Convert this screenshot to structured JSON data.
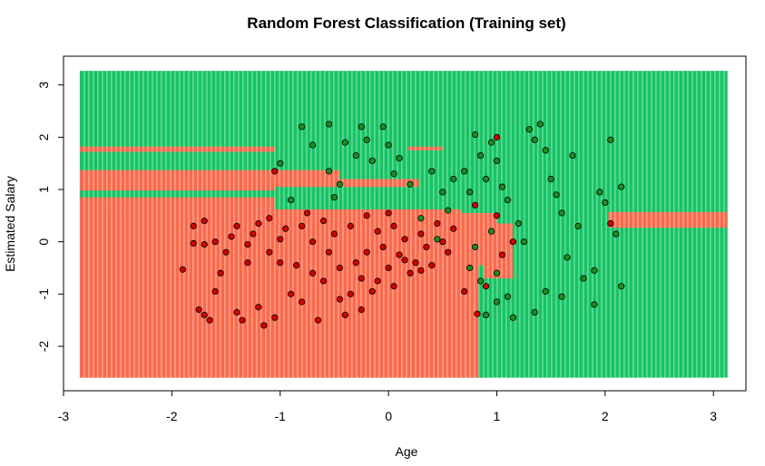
{
  "chart_data": {
    "type": "scatter",
    "title": "Random Forest Classification (Training set)",
    "xlabel": "Age",
    "ylabel": "Estimated Salary",
    "xlim": [
      -3.0,
      3.3
    ],
    "ylim": [
      -2.85,
      3.55
    ],
    "x_ticks": [
      -3,
      -2,
      -1,
      0,
      1,
      2,
      3
    ],
    "y_ticks": [
      -2,
      -1,
      0,
      1,
      2,
      3
    ],
    "x_tick_labels": [
      "-3",
      "-2",
      "-1",
      "0",
      "1",
      "2",
      "3"
    ],
    "y_tick_labels": [
      "-2",
      "-1",
      "0",
      "1",
      "2",
      "3"
    ],
    "grid_range": {
      "x": [
        -2.85,
        3.13
      ],
      "y": [
        -2.6,
        3.27
      ]
    },
    "colors": {
      "class_0_region": "#FA6A4C",
      "class_1_region": "#16C464",
      "class_0_point": "#D40000",
      "class_1_point": "#1E8C22",
      "point_outline": "#000000"
    },
    "regions": [
      {
        "class": 1,
        "x": [
          -2.85,
          3.13
        ],
        "y": [
          -2.6,
          3.27
        ]
      },
      {
        "class": 0,
        "x": [
          -2.85,
          0.67
        ],
        "y": [
          -2.6,
          0.62
        ]
      },
      {
        "class": 0,
        "x": [
          -2.85,
          -1.05
        ],
        "y": [
          0.62,
          1.37
        ]
      },
      {
        "class": 0,
        "x": [
          -1.05,
          -0.45
        ],
        "y": [
          1.05,
          1.37
        ]
      },
      {
        "class": 0,
        "x": [
          -0.45,
          0.28
        ],
        "y": [
          1.05,
          1.2
        ]
      },
      {
        "class": 0,
        "x": [
          0.67,
          0.83
        ],
        "y": [
          -2.6,
          -0.45
        ]
      },
      {
        "class": 0,
        "x": [
          0.67,
          1.15
        ],
        "y": [
          -0.45,
          -0.7
        ]
      },
      {
        "class": 0,
        "x": [
          0.22,
          1.15
        ],
        "y": [
          0.35,
          -0.7
        ]
      },
      {
        "class": 0,
        "x": [
          0.22,
          1.0
        ],
        "y": [
          0.35,
          0.55
        ]
      },
      {
        "class": 0,
        "x": [
          2.03,
          3.13
        ],
        "y": [
          0.27,
          0.57
        ]
      },
      {
        "class": 0,
        "x": [
          0.18,
          0.5
        ],
        "y": [
          1.75,
          1.82
        ]
      },
      {
        "class": 0,
        "x": [
          -2.85,
          -1.05
        ],
        "y": [
          1.72,
          1.82
        ]
      },
      {
        "class": 1,
        "x": [
          -2.85,
          -1.05
        ],
        "y": [
          0.85,
          0.98
        ]
      },
      {
        "class": 1,
        "x": [
          0.83,
          0.88
        ],
        "y": [
          -2.6,
          -0.45
        ]
      }
    ],
    "series": [
      {
        "class": 0,
        "points": [
          [
            -1.9,
            -0.53
          ],
          [
            -1.8,
            -0.03
          ],
          [
            -1.8,
            0.3
          ],
          [
            -1.7,
            0.4
          ],
          [
            -1.7,
            -0.05
          ],
          [
            -1.75,
            -1.3
          ],
          [
            -1.7,
            -1.4
          ],
          [
            -1.65,
            -1.5
          ],
          [
            -1.6,
            0.0
          ],
          [
            -1.55,
            -0.6
          ],
          [
            -1.6,
            -0.95
          ],
          [
            -1.5,
            -0.2
          ],
          [
            -1.45,
            0.1
          ],
          [
            -1.4,
            0.3
          ],
          [
            -1.4,
            -1.35
          ],
          [
            -1.35,
            -1.5
          ],
          [
            -1.3,
            -0.4
          ],
          [
            -1.3,
            -0.05
          ],
          [
            -1.25,
            0.15
          ],
          [
            -1.2,
            0.35
          ],
          [
            -1.2,
            -1.25
          ],
          [
            -1.15,
            -1.6
          ],
          [
            -1.1,
            0.45
          ],
          [
            -1.1,
            -0.2
          ],
          [
            -1.05,
            -1.45
          ],
          [
            -1.0,
            0.05
          ],
          [
            -1.0,
            -0.4
          ],
          [
            -1.05,
            1.35
          ],
          [
            -0.95,
            0.25
          ],
          [
            -0.9,
            -1.0
          ],
          [
            -0.85,
            -0.45
          ],
          [
            -0.8,
            0.3
          ],
          [
            -0.8,
            -1.15
          ],
          [
            -0.75,
            0.55
          ],
          [
            -0.7,
            0.0
          ],
          [
            -0.7,
            -0.6
          ],
          [
            -0.65,
            -1.5
          ],
          [
            -0.6,
            0.4
          ],
          [
            -0.55,
            -0.2
          ],
          [
            -0.5,
            0.15
          ],
          [
            -0.45,
            -1.1
          ],
          [
            -0.4,
            -1.4
          ],
          [
            -0.35,
            0.3
          ],
          [
            -0.3,
            -0.4
          ],
          [
            -0.25,
            -0.7
          ],
          [
            -0.2,
            0.5
          ],
          [
            -0.15,
            -0.95
          ],
          [
            -0.1,
            0.2
          ],
          [
            -0.05,
            -0.1
          ],
          [
            0.0,
            -0.5
          ],
          [
            0.05,
            0.3
          ],
          [
            0.1,
            -0.25
          ],
          [
            0.15,
            0.05
          ],
          [
            0.2,
            -0.6
          ],
          [
            0.25,
            -0.4
          ],
          [
            0.3,
            0.15
          ],
          [
            0.35,
            -0.1
          ],
          [
            0.4,
            -0.45
          ],
          [
            0.45,
            0.35
          ],
          [
            0.5,
            0.0
          ],
          [
            0.55,
            -0.2
          ],
          [
            0.6,
            0.25
          ],
          [
            0.7,
            -0.95
          ],
          [
            0.8,
            0.7
          ],
          [
            0.82,
            -1.38
          ],
          [
            0.9,
            -0.85
          ],
          [
            1.0,
            0.5
          ],
          [
            1.05,
            -0.25
          ],
          [
            1.15,
            0.0
          ],
          [
            1.0,
            2.0
          ],
          [
            2.05,
            0.35
          ],
          [
            -0.35,
            -1.0
          ],
          [
            -0.25,
            -1.3
          ],
          [
            -0.2,
            -0.2
          ],
          [
            -0.1,
            -0.75
          ],
          [
            0.0,
            0.55
          ],
          [
            0.05,
            -0.85
          ],
          [
            0.15,
            -0.35
          ],
          [
            0.3,
            -0.55
          ],
          [
            -0.6,
            -0.75
          ],
          [
            -0.45,
            -0.5
          ]
        ]
      },
      {
        "class": 1,
        "points": [
          [
            -0.8,
            2.2
          ],
          [
            -0.7,
            1.85
          ],
          [
            -0.55,
            2.25
          ],
          [
            -0.55,
            1.35
          ],
          [
            -0.45,
            1.1
          ],
          [
            -0.4,
            1.9
          ],
          [
            -0.3,
            1.65
          ],
          [
            -0.25,
            2.2
          ],
          [
            -0.2,
            1.95
          ],
          [
            -0.15,
            1.55
          ],
          [
            -0.05,
            2.2
          ],
          [
            0.0,
            1.85
          ],
          [
            0.05,
            1.3
          ],
          [
            0.1,
            1.6
          ],
          [
            -1.0,
            1.5
          ],
          [
            -0.9,
            0.8
          ],
          [
            -0.5,
            0.85
          ],
          [
            0.2,
            1.1
          ],
          [
            0.3,
            0.45
          ],
          [
            0.4,
            1.35
          ],
          [
            0.45,
            0.05
          ],
          [
            0.5,
            0.95
          ],
          [
            0.55,
            0.6
          ],
          [
            0.6,
            1.2
          ],
          [
            0.7,
            1.35
          ],
          [
            0.75,
            0.95
          ],
          [
            0.8,
            2.05
          ],
          [
            0.85,
            1.65
          ],
          [
            0.9,
            1.2
          ],
          [
            0.95,
            1.9
          ],
          [
            1.0,
            1.55
          ],
          [
            1.05,
            1.05
          ],
          [
            1.1,
            0.8
          ],
          [
            1.2,
            0.35
          ],
          [
            1.25,
            0.0
          ],
          [
            1.3,
            2.15
          ],
          [
            1.35,
            1.95
          ],
          [
            1.4,
            2.25
          ],
          [
            1.45,
            1.75
          ],
          [
            1.5,
            1.2
          ],
          [
            1.55,
            0.9
          ],
          [
            1.6,
            0.55
          ],
          [
            1.65,
            -0.3
          ],
          [
            1.7,
            1.65
          ],
          [
            1.75,
            0.3
          ],
          [
            1.8,
            -0.7
          ],
          [
            1.9,
            -1.2
          ],
          [
            1.95,
            0.95
          ],
          [
            2.0,
            0.75
          ],
          [
            2.05,
            1.95
          ],
          [
            2.1,
            0.15
          ],
          [
            2.15,
            1.05
          ],
          [
            2.15,
            -0.85
          ],
          [
            1.9,
            -0.55
          ],
          [
            1.0,
            -1.15
          ],
          [
            0.85,
            -0.75
          ],
          [
            0.75,
            -0.5
          ],
          [
            0.9,
            -1.4
          ],
          [
            1.1,
            -1.05
          ],
          [
            1.35,
            -1.35
          ],
          [
            1.45,
            -0.95
          ],
          [
            1.6,
            -1.05
          ],
          [
            0.95,
            0.2
          ],
          [
            1.0,
            -0.6
          ],
          [
            0.8,
            -0.1
          ],
          [
            1.15,
            -1.45
          ]
        ]
      }
    ]
  }
}
